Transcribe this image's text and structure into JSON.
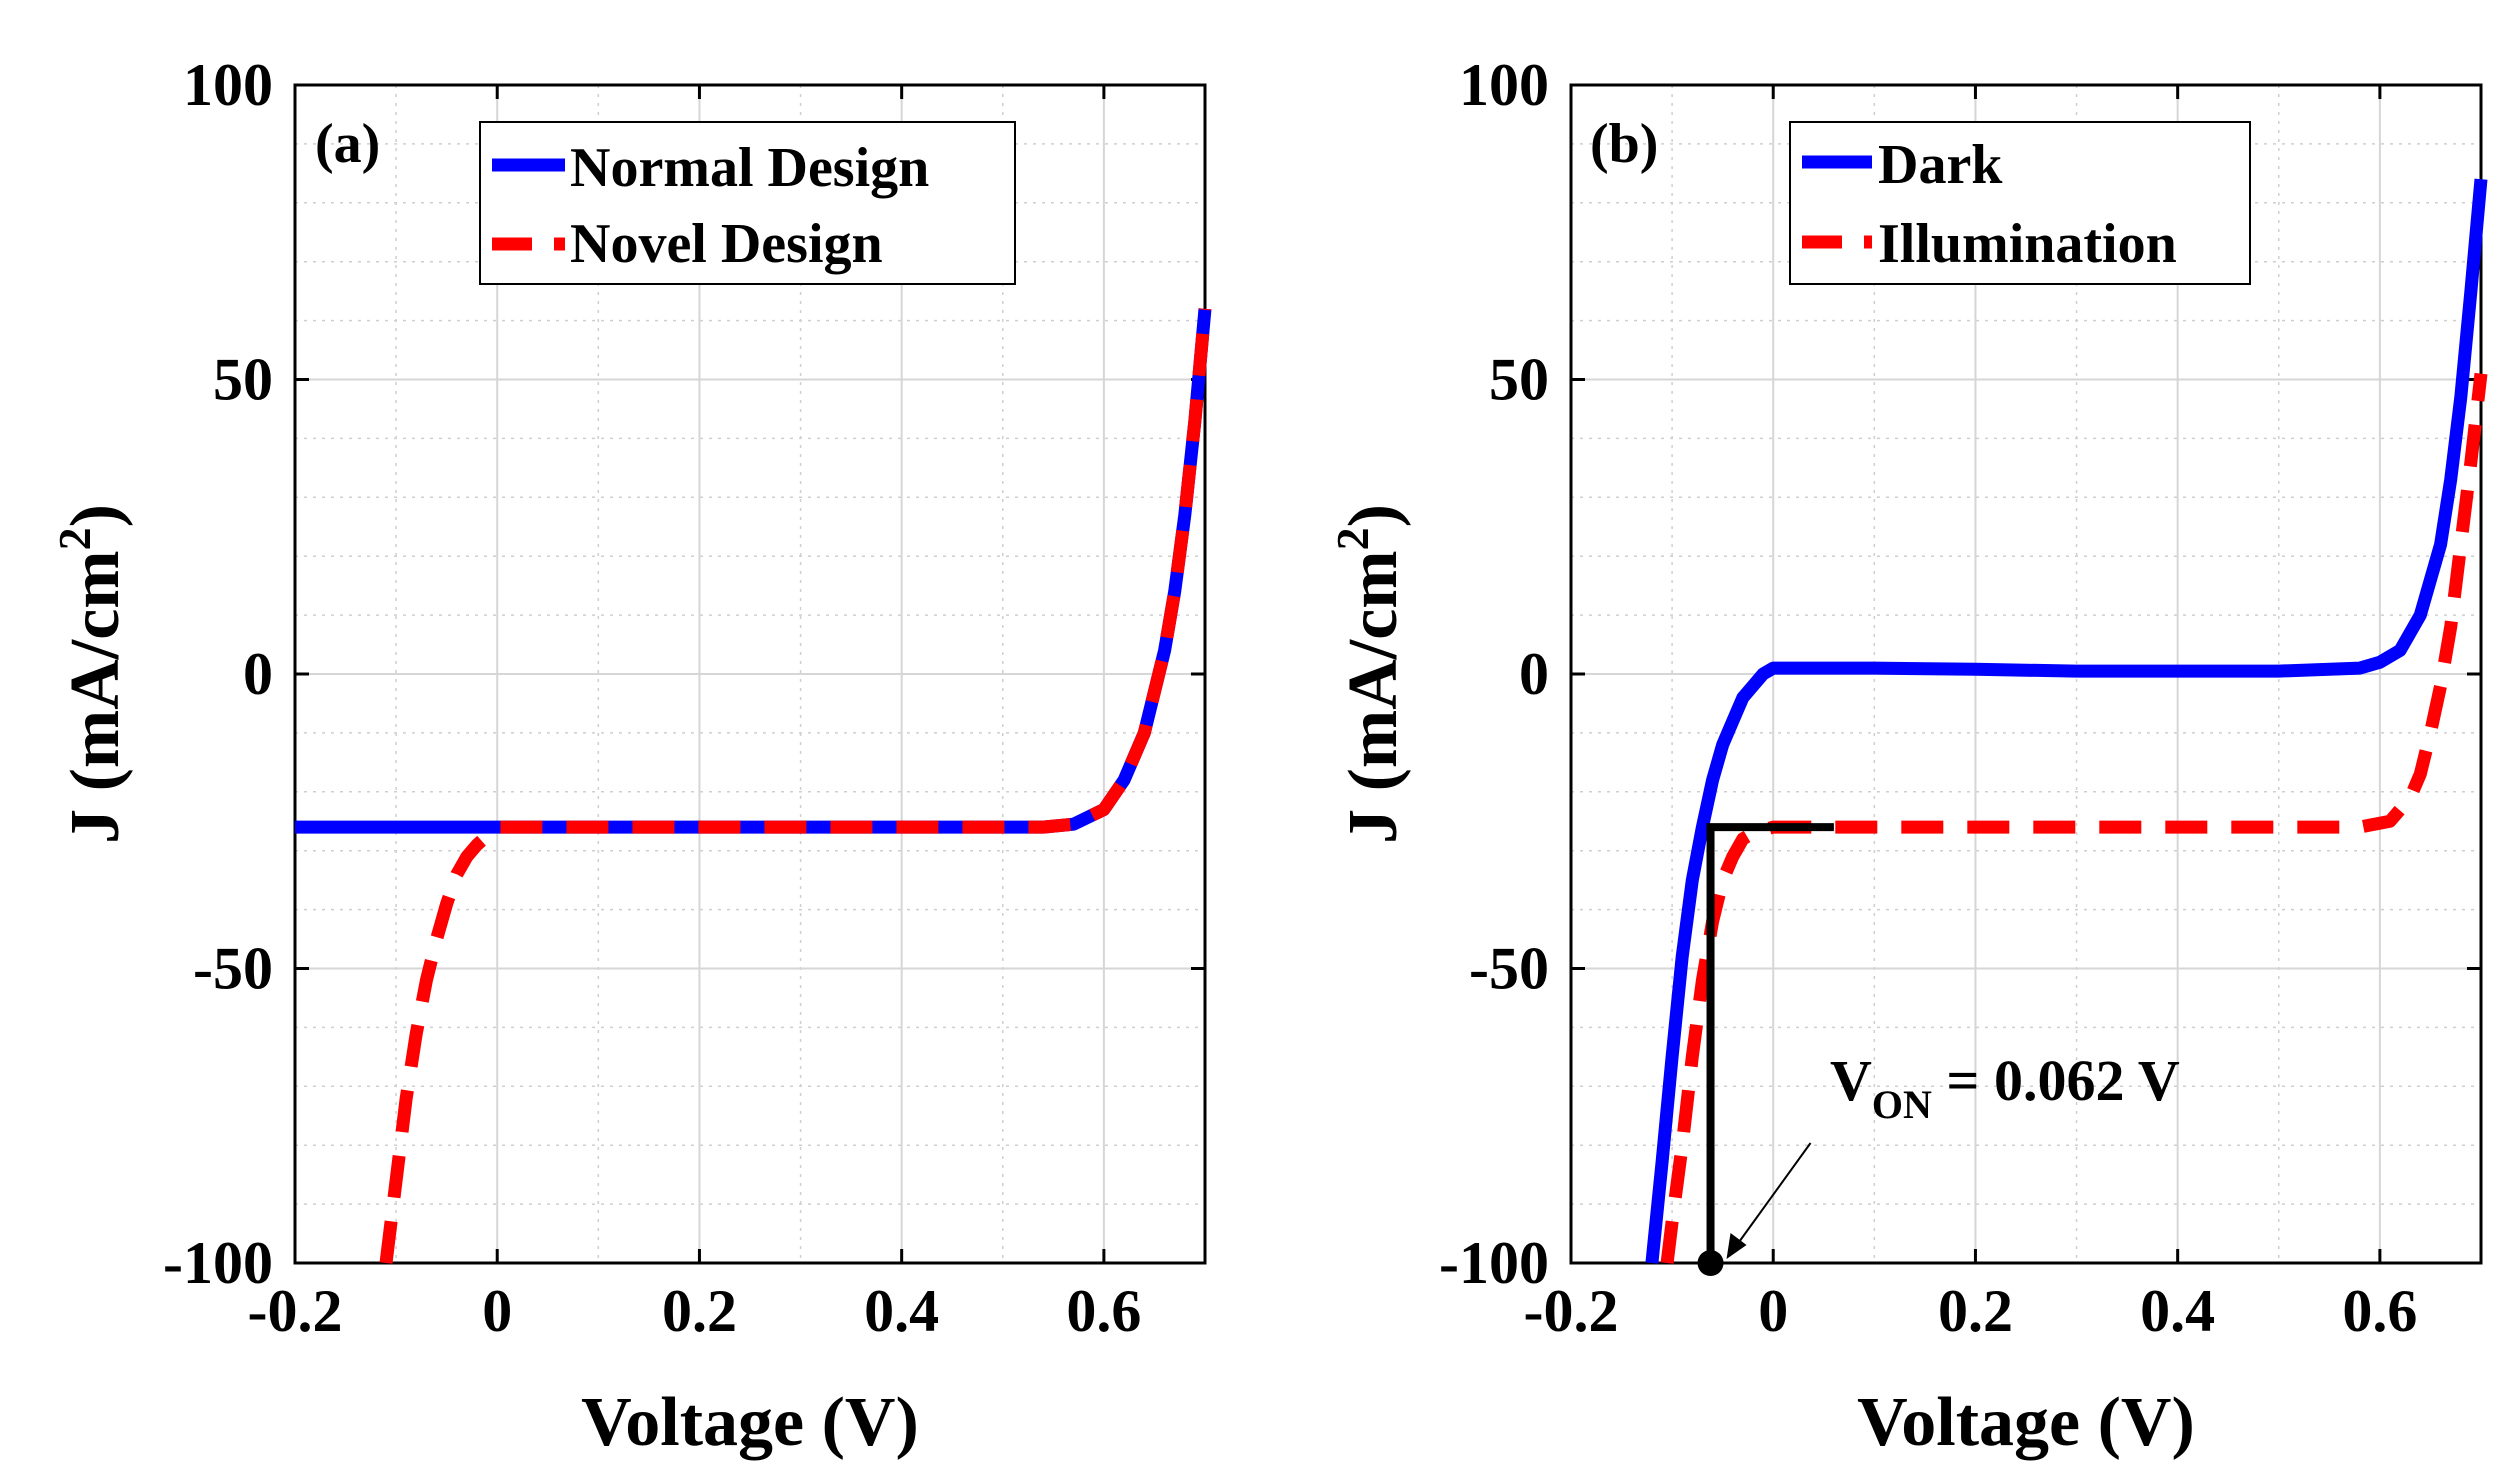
{
  "chart_data": [
    {
      "type": "line",
      "panel": "(a)",
      "title": "",
      "xlabel": "Voltage (V)",
      "ylabel": "J (mA/cm",
      "ylabel_sup": "2",
      "ylabel_close": ")",
      "xlim": [
        -0.2,
        0.7
      ],
      "ylim": [
        -100,
        100
      ],
      "xticks": [
        -0.2,
        0,
        0.2,
        0.4,
        0.6
      ],
      "xtick_labels": [
        "-0.2",
        "0",
        "0.2",
        "0.4",
        "0.6"
      ],
      "yticks": [
        -100,
        -50,
        0,
        50,
        100
      ],
      "ytick_labels": [
        "-100",
        "-50",
        "0",
        "50",
        "100"
      ],
      "grid": true,
      "legend_position": "top-center",
      "series": [
        {
          "name": "Normal Design",
          "color": "#0000ff",
          "style": "solid",
          "x": [
            -0.2,
            0.0,
            0.2,
            0.4,
            0.54,
            0.57,
            0.6,
            0.62,
            0.64,
            0.66,
            0.67,
            0.68,
            0.69,
            0.7
          ],
          "y": [
            -26,
            -26,
            -26,
            -26,
            -26,
            -25.5,
            -23,
            -18,
            -10,
            4,
            14,
            27,
            43,
            62
          ]
        },
        {
          "name": "Novel Design",
          "color": "#ff0000",
          "style": "dashed",
          "x": [
            -0.11,
            -0.1,
            -0.09,
            -0.08,
            -0.07,
            -0.06,
            -0.05,
            -0.04,
            -0.03,
            -0.02,
            0.0,
            0.2,
            0.4,
            0.54,
            0.57,
            0.6,
            0.62,
            0.64,
            0.66,
            0.67,
            0.68,
            0.69,
            0.7
          ],
          "y": [
            -100,
            -86,
            -72,
            -61,
            -52,
            -45,
            -39,
            -34,
            -31,
            -29,
            -26,
            -26,
            -26,
            -26,
            -25.5,
            -23,
            -18,
            -10,
            4,
            14,
            27,
            43,
            62
          ]
        }
      ]
    },
    {
      "type": "line",
      "panel": "(b)",
      "title": "",
      "xlabel": "Voltage (V)",
      "ylabel": "J (mA/cm",
      "ylabel_sup": "2",
      "ylabel_close": ")",
      "xlim": [
        -0.2,
        0.7
      ],
      "ylim": [
        -100,
        100
      ],
      "xticks": [
        -0.2,
        0,
        0.2,
        0.4,
        0.6
      ],
      "xtick_labels": [
        "-0.2",
        "0",
        "0.2",
        "0.4",
        "0.6"
      ],
      "yticks": [
        -100,
        -50,
        0,
        50,
        100
      ],
      "ytick_labels": [
        "-100",
        "-50",
        "0",
        "50",
        "100"
      ],
      "grid": true,
      "legend_position": "top-center",
      "series": [
        {
          "name": "Dark",
          "color": "#0000ff",
          "style": "solid",
          "x": [
            -0.12,
            -0.11,
            -0.1,
            -0.09,
            -0.08,
            -0.07,
            -0.06,
            -0.05,
            -0.04,
            -0.03,
            -0.02,
            -0.01,
            0.0,
            0.02,
            0.1,
            0.2,
            0.3,
            0.4,
            0.5,
            0.58,
            0.6,
            0.62,
            0.64,
            0.66,
            0.67,
            0.68,
            0.69,
            0.7
          ],
          "y": [
            -100,
            -83,
            -65,
            -48,
            -35,
            -26,
            -18,
            -12,
            -8,
            -4,
            -2,
            0,
            1,
            1,
            1,
            0.8,
            0.5,
            0.5,
            0.5,
            1,
            2,
            4,
            10,
            22,
            33,
            47,
            65,
            84
          ]
        },
        {
          "name": "Illumination",
          "color": "#ff0000",
          "style": "dashed",
          "x": [
            -0.105,
            -0.1,
            -0.09,
            -0.08,
            -0.07,
            -0.06,
            -0.05,
            -0.04,
            -0.03,
            -0.02,
            0.0,
            0.2,
            0.4,
            0.58,
            0.61,
            0.63,
            0.64,
            0.65,
            0.66,
            0.67,
            0.68,
            0.69,
            0.7
          ],
          "y": [
            -100,
            -93,
            -80,
            -65,
            -52,
            -42,
            -35,
            -31,
            -28,
            -27,
            -26,
            -26,
            -26,
            -26,
            -25,
            -21,
            -17,
            -10,
            -2,
            8,
            22,
            36,
            51
          ]
        }
      ],
      "annotations": {
        "von_label": "V",
        "von_sub": "ON",
        "von_value": " = 0.062 V",
        "von_x": -0.062,
        "jsc": -26,
        "bracket_x_end": 0.06
      }
    }
  ]
}
